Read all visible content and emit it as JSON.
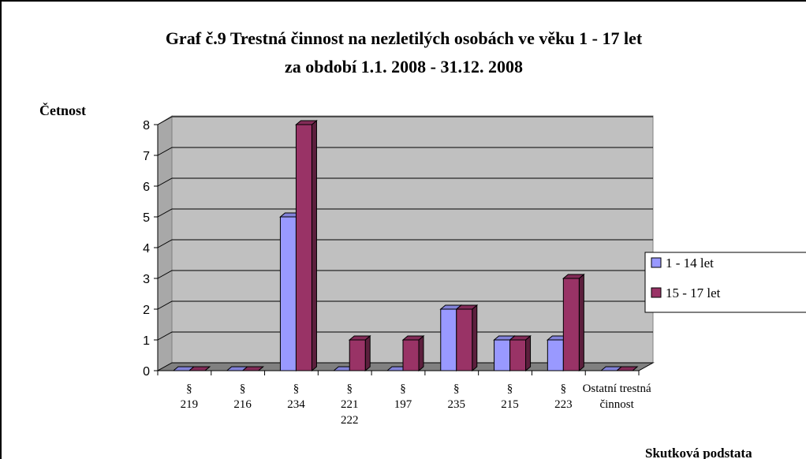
{
  "chart_data": {
    "type": "bar3d",
    "title": [
      "Graf č.9 Trestná činnost na nezletilých osobách ve věku 1 - 17 let",
      "za období 1.1. 2008 - 31.12. 2008"
    ],
    "y_label": "Četnost",
    "x_label": "Skutková podstata",
    "categories": [
      "§\n219",
      "§\n216",
      "§\n234",
      "§\n221\n222",
      "§\n197",
      "§\n235",
      "§\n215",
      "§\n223",
      "Ostatní trestná\nčinnost"
    ],
    "series": [
      {
        "name": "1 - 14 let",
        "color": "#9999ff",
        "values": [
          0,
          0,
          5,
          0,
          0,
          2,
          1,
          1,
          0
        ]
      },
      {
        "name": "15 - 17 let",
        "color": "#993366",
        "values": [
          0,
          0,
          8,
          1,
          1,
          2,
          1,
          3,
          0
        ]
      }
    ],
    "ylim": [
      0,
      8
    ],
    "yticks": [
      0,
      1,
      2,
      3,
      4,
      5,
      6,
      7,
      8
    ],
    "grid": true,
    "legend": "right"
  }
}
